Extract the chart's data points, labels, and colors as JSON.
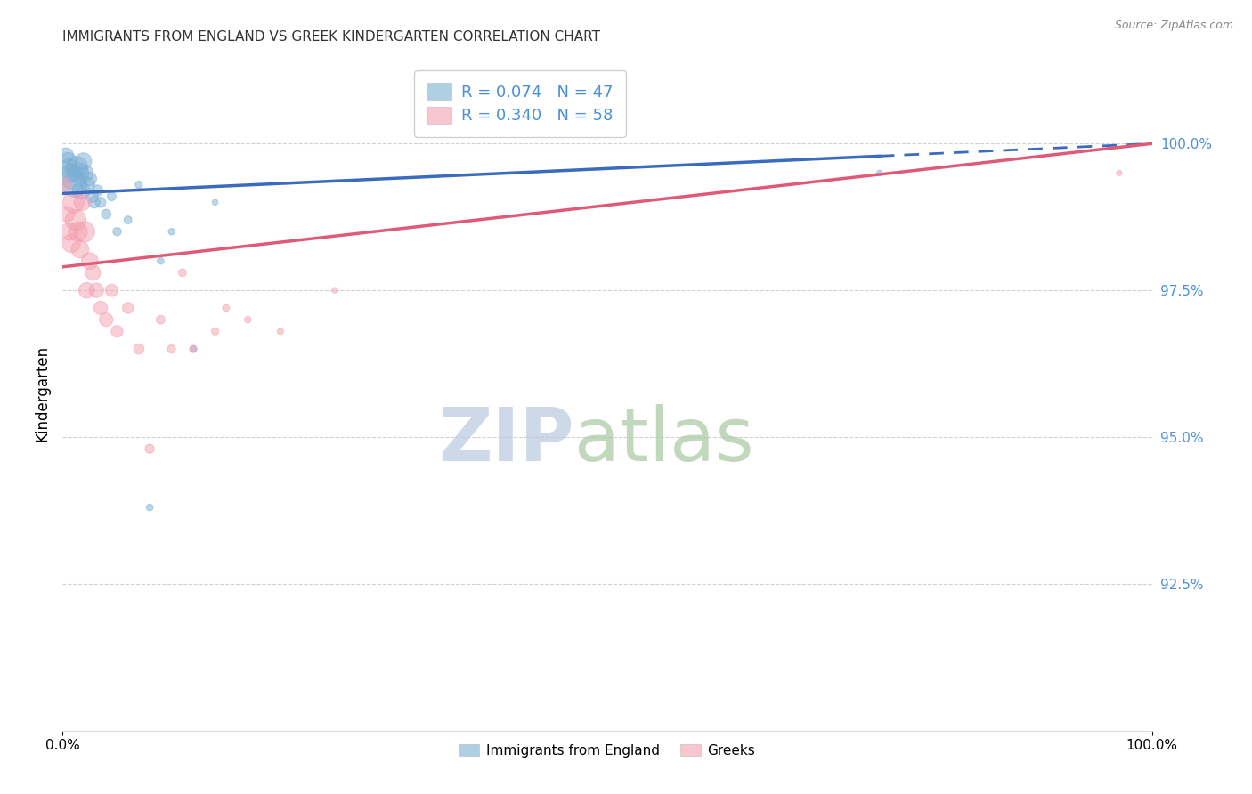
{
  "title": "IMMIGRANTS FROM ENGLAND VS GREEK KINDERGARTEN CORRELATION CHART",
  "source": "Source: ZipAtlas.com",
  "ylabel": "Kindergarten",
  "legend_label1": "Immigrants from England",
  "legend_label2": "Greeks",
  "R_blue": 0.074,
  "N_blue": 47,
  "R_pink": 0.34,
  "N_pink": 58,
  "blue_color": "#7bafd4",
  "pink_color": "#f4a0b0",
  "blue_line_color": "#3a6bbf",
  "pink_line_color": "#e05a78",
  "xmin": 0.0,
  "xmax": 100.0,
  "ymin": 90.0,
  "ymax": 101.5,
  "ytick_values": [
    92.5,
    95.0,
    97.5,
    100.0
  ],
  "blue_trendline_solid_end": 75.0,
  "blue_trendline_y_start": 99.15,
  "blue_trendline_y_end": 100.0,
  "pink_trendline_y_start": 97.9,
  "pink_trendline_y_end": 100.0,
  "blue_points_x": [
    0.3,
    0.5,
    0.6,
    0.8,
    1.0,
    1.1,
    1.3,
    1.5,
    1.7,
    1.9,
    2.1,
    2.3,
    2.5,
    2.7,
    2.9,
    3.2,
    3.5,
    4.0,
    4.5,
    5.0,
    6.0,
    7.0,
    8.0,
    9.0,
    10.0,
    12.0,
    14.0,
    75.0
  ],
  "blue_points_y": [
    99.8,
    99.7,
    99.6,
    99.5,
    99.4,
    99.3,
    99.6,
    99.5,
    99.2,
    99.7,
    99.5,
    99.3,
    99.4,
    99.1,
    99.0,
    99.2,
    99.0,
    98.8,
    99.1,
    98.5,
    98.7,
    99.3,
    93.8,
    98.0,
    98.5,
    96.5,
    99.0,
    99.5
  ],
  "blue_sizes": [
    150,
    200,
    180,
    220,
    350,
    400,
    300,
    250,
    200,
    180,
    160,
    140,
    120,
    100,
    90,
    80,
    70,
    60,
    50,
    45,
    40,
    35,
    30,
    30,
    28,
    25,
    22,
    20
  ],
  "pink_points_x": [
    0.2,
    0.4,
    0.6,
    0.8,
    1.0,
    1.2,
    1.4,
    1.6,
    1.8,
    2.0,
    2.2,
    2.5,
    2.8,
    3.1,
    3.5,
    4.0,
    4.5,
    5.0,
    6.0,
    7.0,
    8.0,
    9.0,
    10.0,
    11.0,
    12.0,
    14.0,
    15.0,
    17.0,
    20.0,
    25.0,
    97.0
  ],
  "pink_points_y": [
    99.3,
    98.8,
    98.5,
    98.3,
    99.0,
    98.7,
    98.5,
    98.2,
    99.0,
    98.5,
    97.5,
    98.0,
    97.8,
    97.5,
    97.2,
    97.0,
    97.5,
    96.8,
    97.2,
    96.5,
    94.8,
    97.0,
    96.5,
    97.8,
    96.5,
    96.8,
    97.2,
    97.0,
    96.8,
    97.5,
    99.5
  ],
  "pink_sizes": [
    120,
    160,
    200,
    220,
    300,
    280,
    240,
    200,
    180,
    280,
    160,
    180,
    150,
    140,
    120,
    120,
    100,
    90,
    80,
    70,
    55,
    50,
    45,
    40,
    38,
    35,
    32,
    28,
    25,
    22,
    20
  ]
}
